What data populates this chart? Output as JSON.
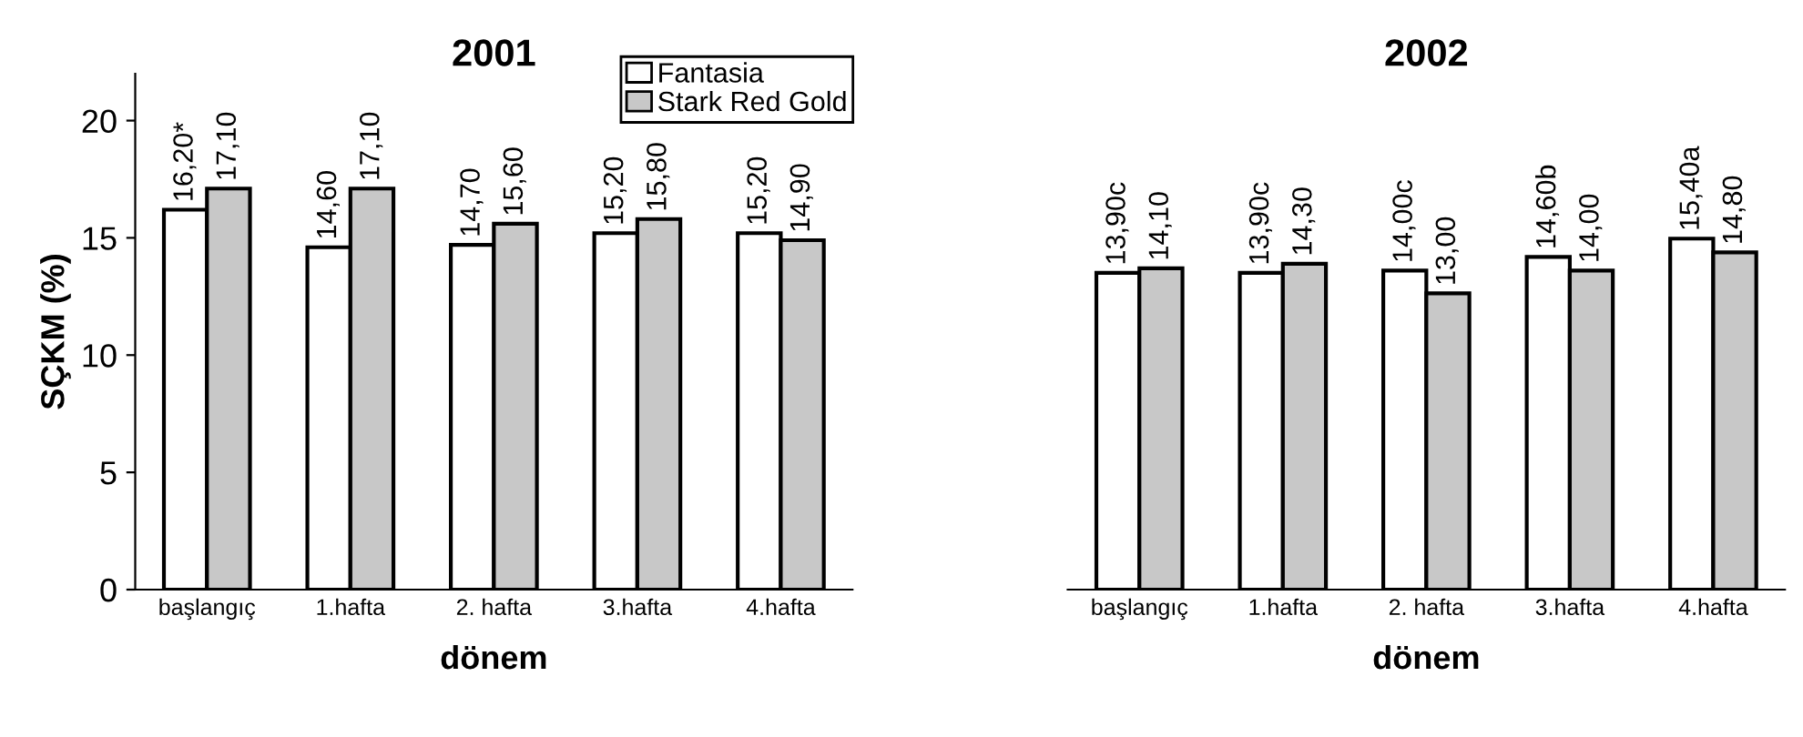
{
  "chart_data": [
    {
      "type": "bar",
      "title": "2001",
      "xlabel": "dönem",
      "ylabel": "SÇKM (%)",
      "categories": [
        "başlangıç",
        "1.hafta",
        "2. hafta",
        "3.hafta",
        "4.hafta"
      ],
      "series": [
        {
          "name": "Fantasia",
          "color": "#ffffff",
          "values": [
            16.2,
            14.6,
            14.7,
            15.2,
            15.2
          ],
          "value_labels": [
            "16,20*",
            "14,60",
            "14,70",
            "15,20",
            "15,20"
          ]
        },
        {
          "name": "Stark Red Gold",
          "color": "#c8c8c8",
          "values": [
            17.1,
            17.1,
            15.6,
            15.8,
            14.9
          ],
          "value_labels": [
            "17,10",
            "17,10",
            "15,60",
            "15,80",
            "14,90"
          ]
        }
      ],
      "ylim": [
        0,
        22
      ],
      "yticks": [
        0,
        5,
        10,
        15,
        20
      ],
      "grid": false,
      "legend": "top right"
    },
    {
      "type": "bar",
      "title": "2002",
      "xlabel": "dönem",
      "categories": [
        "başlangıç",
        "1.hafta",
        "2. hafta",
        "3.hafta",
        "4.hafta"
      ],
      "series": [
        {
          "color": "#ffffff",
          "values": [
            13.9,
            13.9,
            14.0,
            14.6,
            15.4
          ],
          "value_labels": [
            "13,90c",
            "13,90c",
            "14,00c",
            "14,60b",
            "15,40a"
          ]
        },
        {
          "color": "#c8c8c8",
          "values": [
            14.1,
            14.3,
            13.0,
            14.0,
            14.8
          ],
          "value_labels": [
            "14,10",
            "14,30",
            "13,00",
            "14,00",
            "14,80"
          ]
        }
      ],
      "tick_labels": "x",
      "grid": false,
      "legend": false
    }
  ]
}
